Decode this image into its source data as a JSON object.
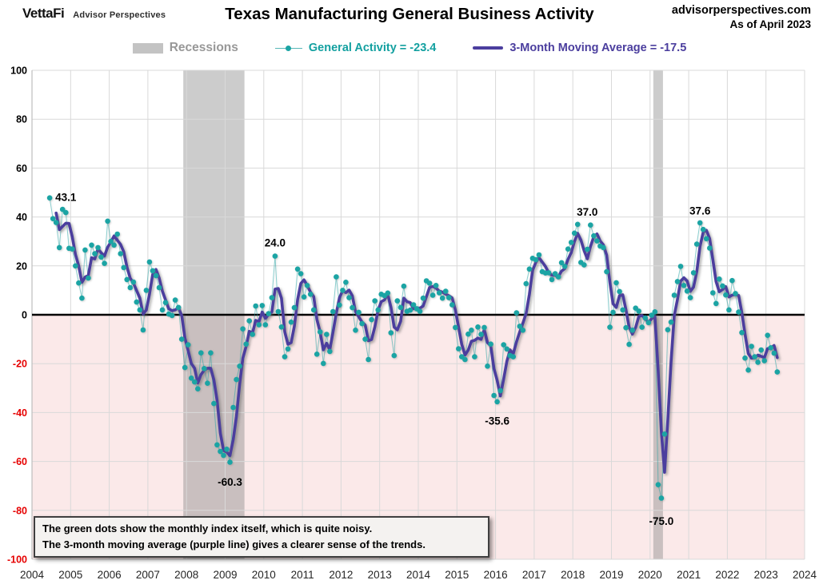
{
  "header": {
    "logo_primary": "VettaFi",
    "logo_secondary": "Advisor Perspectives",
    "title": "Texas Manufacturing General Business Activity",
    "site": "advisorperspectives.com",
    "as_of": "As of April 2023"
  },
  "legend": {
    "recessions_label": "Recessions",
    "general_activity_label": "General Activity = -23.4",
    "moving_average_label": "3-Month Moving Average = -17.5"
  },
  "note": {
    "line1": "The green dots show the monthly  index itself, which is quite noisy.",
    "line2": "The 3-month moving average (purple line) gives a clearer sense of the trends."
  },
  "colors": {
    "dot_teal": "#1ba4a4",
    "connector_teal": "rgba(27,164,164,0.5)",
    "ma_purple": "#4b3e9e",
    "below_zero_pink": "#fbe9e9",
    "recession_gray": "rgba(128,128,128,0.40)",
    "gridline": "#d9d9d9",
    "zero_line": "#000000",
    "negative_tick_red": "#e60000",
    "positive_tick_black": "#000000"
  },
  "chart_data": {
    "type": "line",
    "title": "Texas Manufacturing General Business Activity",
    "xlabel": "",
    "ylabel": "",
    "ylim": [
      -100,
      100
    ],
    "y_tick_step": 20,
    "x_year_labels": [
      2004,
      2005,
      2006,
      2007,
      2008,
      2009,
      2010,
      2011,
      2012,
      2013,
      2014,
      2015,
      2016,
      2017,
      2018,
      2019,
      2020,
      2021,
      2022,
      2023,
      2024
    ],
    "grid": true,
    "legend_position": "top",
    "start_month": "2004-06",
    "series": [
      {
        "name": "General Activity",
        "style": "dots",
        "latest_value": -23.4,
        "values": [
          47.8,
          39.3,
          37.7,
          27.5,
          43.1,
          41.8,
          27.2,
          26.9,
          20.0,
          13.0,
          6.8,
          26.5,
          15.0,
          28.5,
          25.0,
          27.5,
          23.6,
          21.0,
          38.3,
          30.0,
          28.5,
          33.0,
          25.0,
          19.3,
          14.4,
          11.1,
          13.4,
          5.2,
          2.0,
          -6.2,
          10.0,
          21.6,
          18.0,
          16.0,
          11.1,
          2.0,
          5.0,
          0.3,
          -0.3,
          6.0,
          3.0,
          -10.0,
          -21.6,
          -12.3,
          -25.9,
          -27.5,
          -30.3,
          -15.6,
          -22.0,
          -28.0,
          -15.6,
          -36.3,
          -53.2,
          -55.9,
          -57.5,
          -55.0,
          -60.3,
          -37.9,
          -26.5,
          -21.0,
          -5.8,
          -12.0,
          -2.5,
          -8.0,
          3.6,
          -4.1,
          3.8,
          -4.1,
          0.5,
          7.0,
          24.0,
          1.3,
          -5.0,
          -17.2,
          -14.0,
          -3.0,
          2.9,
          18.7,
          16.8,
          7.3,
          12.0,
          8.4,
          2.0,
          -16.1,
          -7.0,
          -19.9,
          -8.0,
          -15.0,
          1.3,
          15.5,
          4.0,
          10.0,
          13.3,
          7.0,
          2.9,
          -6.3,
          1.0,
          -3.6,
          -10.0,
          -18.3,
          -2.0,
          5.7,
          2.0,
          8.4,
          7.8,
          8.9,
          -7.4,
          -16.7,
          5.7,
          3.0,
          11.7,
          1.4,
          1.9,
          4.1,
          2.5,
          1.4,
          6.8,
          13.9,
          12.9,
          8.0,
          12.0,
          9.0,
          6.8,
          9.6,
          7.0,
          4.1,
          -5.2,
          -13.9,
          -17.2,
          -18.3,
          -7.9,
          -6.3,
          -17.2,
          -5.0,
          -8.0,
          -5.2,
          -21.0,
          -12.0,
          -33.0,
          -35.6,
          -31.0,
          -12.3,
          -14.0,
          -16.7,
          -17.2,
          0.8,
          -4.7,
          -6.3,
          12.7,
          18.7,
          23.1,
          22.5,
          24.5,
          17.6,
          17.1,
          17.2,
          14.4,
          16.8,
          15.5,
          21.3,
          19.8,
          26.9,
          29.6,
          33.4,
          37.0,
          21.4,
          20.4,
          26.8,
          36.7,
          32.3,
          30.2,
          28.1,
          27.5,
          17.6,
          -5.1,
          1.0,
          13.1,
          9.5,
          2.0,
          -5.3,
          -12.1,
          -6.3,
          2.7,
          1.5,
          -5.1,
          -1.3,
          -3.2,
          -0.2,
          1.2,
          -69.5,
          -75.0,
          -48.8,
          -6.1,
          -3.0,
          8.0,
          13.6,
          19.8,
          12.0,
          9.7,
          7.0,
          17.2,
          28.9,
          37.6,
          34.9,
          31.1,
          27.3,
          9.0,
          4.6,
          14.6,
          11.8,
          8.1,
          2.0,
          14.0,
          8.7,
          1.1,
          -7.3,
          -17.7,
          -22.6,
          -12.9,
          -17.2,
          -19.4,
          -14.4,
          -18.8,
          -8.4,
          -13.5,
          -15.7,
          -23.4
        ]
      },
      {
        "name": "3-Month Moving Average",
        "style": "line",
        "latest_value": -17.5,
        "derived": "trailing 3-month mean of General Activity"
      }
    ],
    "recessions": [
      {
        "start": "2007-12",
        "end": "2009-06"
      },
      {
        "start": "2020-02",
        "end": "2020-04"
      }
    ],
    "annotations": [
      {
        "text": "43.1",
        "month": "2004-11",
        "value": 46.5
      },
      {
        "text": "24.0",
        "month": "2010-04",
        "value": 28
      },
      {
        "text": "37.0",
        "month": "2018-05",
        "value": 40.5
      },
      {
        "text": "37.6",
        "month": "2021-04",
        "value": 41
      },
      {
        "text": "-35.6",
        "month": "2016-01",
        "value": -45
      },
      {
        "text": "-60.3",
        "month": "2009-02",
        "value": -70
      },
      {
        "text": "-75.0",
        "month": "2020-04",
        "value": -86
      }
    ]
  }
}
